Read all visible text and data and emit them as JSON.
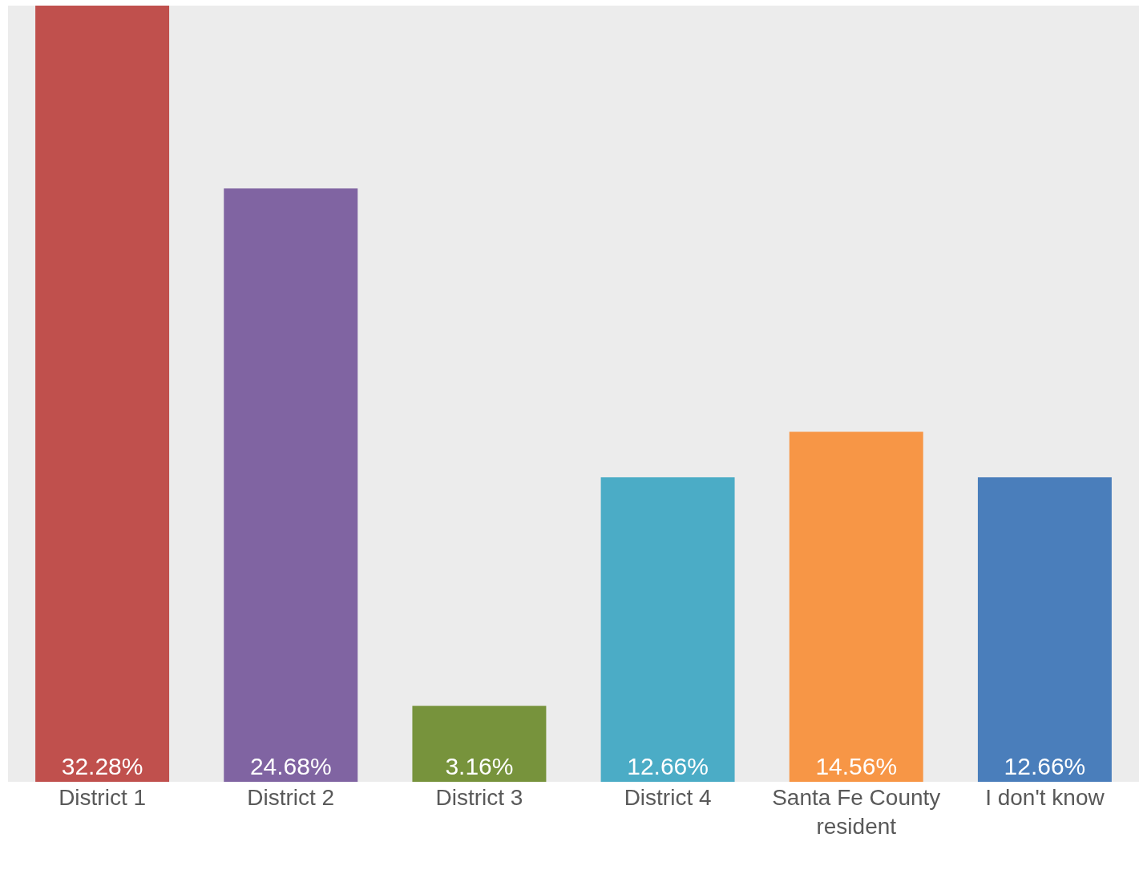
{
  "chart_data": {
    "type": "bar",
    "categories": [
      "District 1",
      "District 2",
      "District 3",
      "District 4",
      "Santa Fe County resident",
      "I don't know"
    ],
    "values": [
      32.28,
      24.68,
      3.16,
      12.66,
      14.56,
      12.66
    ],
    "value_labels": [
      "32.28%",
      "24.68%",
      "3.16%",
      "12.66%",
      "14.56%",
      "12.66%"
    ],
    "colors": [
      "#c0504d",
      "#8064a2",
      "#77933c",
      "#4bacc6",
      "#f79646",
      "#4a7ebb"
    ],
    "ylim": [
      0,
      32.28
    ],
    "tick_labels": "x",
    "grid": false,
    "legend": false
  }
}
